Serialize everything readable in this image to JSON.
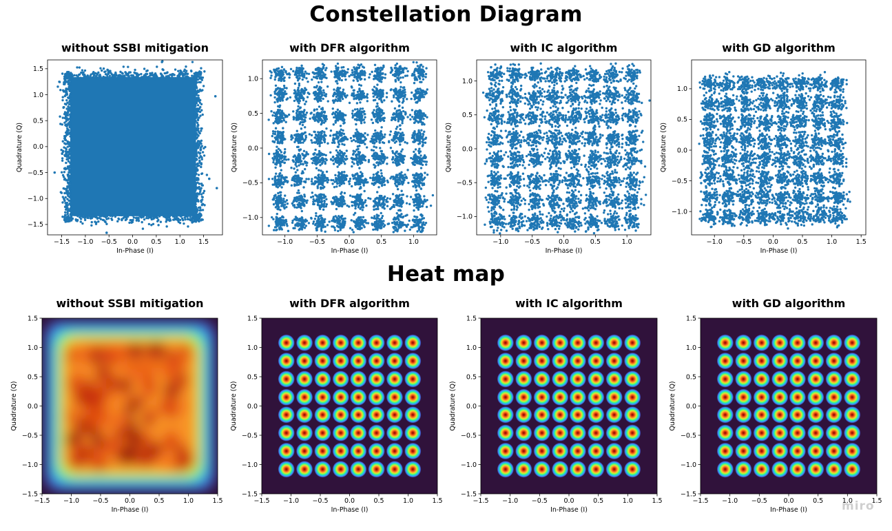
{
  "titles": {
    "constellation": "Constellation Diagram",
    "heat": "Heat map"
  },
  "watermark": "miro",
  "colors": {
    "scatter": "#1f77b4",
    "heat_background": "#30123b",
    "heat_colormap": "turbo"
  },
  "chart_data": [
    {
      "type": "scatter",
      "title": "without SSBI mitigation",
      "xlabel": "In-Phase (I)",
      "ylabel": "Quadrature (Q)",
      "xlim": [
        -1.8,
        1.9
      ],
      "ylim": [
        -1.7,
        1.67
      ],
      "xticks": [
        -1.5,
        -1.0,
        -0.5,
        0.0,
        0.5,
        1.0,
        1.5
      ],
      "xtick_labels": [
        "−1.5",
        "−1.0",
        "−0.5",
        "0.0",
        "0.5",
        "1.0",
        "1.5"
      ],
      "yticks": [
        -1.5,
        -1.0,
        -0.5,
        0.0,
        0.5,
        1.0,
        1.5
      ],
      "ytick_labels": [
        "−1.5",
        "−1.0",
        "−0.5",
        "0.0",
        "0.5",
        "1.0",
        "1.5"
      ],
      "distribution": "dense square cloud",
      "extent": [
        -1.5,
        1.5
      ],
      "grid": false
    },
    {
      "type": "scatter",
      "title": "with DFR algorithm",
      "xlabel": "In-Phase (I)",
      "ylabel": "Quadrature (Q)",
      "xlim": [
        -1.35,
        1.36
      ],
      "ylim": [
        -1.25,
        1.27
      ],
      "xticks": [
        -1.0,
        -0.5,
        0.0,
        0.5,
        1.0
      ],
      "xtick_labels": [
        "−1.0",
        "−0.5",
        "0.0",
        "0.5",
        "1.0"
      ],
      "yticks": [
        -1.0,
        -0.5,
        0.0,
        0.5,
        1.0
      ],
      "ytick_labels": [
        "−1.0",
        "−0.5",
        "0.0",
        "0.5",
        "1.0"
      ],
      "constellation": "64-QAM",
      "centers": [
        -1.08,
        -0.77,
        -0.46,
        -0.15,
        0.15,
        0.46,
        0.77,
        1.08
      ],
      "spread": 0.055,
      "grid": false
    },
    {
      "type": "scatter",
      "title": "with IC algorithm",
      "xlabel": "In-Phase (I)",
      "ylabel": "Quadrature (Q)",
      "xlim": [
        -1.38,
        1.38
      ],
      "ylim": [
        -1.27,
        1.31
      ],
      "xticks": [
        -1.0,
        -0.5,
        0.0,
        0.5,
        1.0
      ],
      "xtick_labels": [
        "−1.0",
        "−0.5",
        "0.0",
        "0.5",
        "1.0"
      ],
      "yticks": [
        -1.0,
        -0.5,
        0.0,
        0.5,
        1.0
      ],
      "ytick_labels": [
        "−1.0",
        "−0.5",
        "0.0",
        "0.5",
        "1.0"
      ],
      "constellation": "64-QAM",
      "centers": [
        -1.08,
        -0.77,
        -0.46,
        -0.15,
        0.15,
        0.46,
        0.77,
        1.08
      ],
      "spread": 0.065,
      "grid": false
    },
    {
      "type": "scatter",
      "title": "with GD algorithm",
      "xlabel": "In-Phase (I)",
      "ylabel": "Quadrature (Q)",
      "xlim": [
        -1.39,
        1.58
      ],
      "ylim": [
        -1.38,
        1.47
      ],
      "xticks": [
        -1.0,
        -0.5,
        0.0,
        0.5,
        1.0,
        1.5
      ],
      "xtick_labels": [
        "−1.0",
        "−0.5",
        "0.0",
        "0.5",
        "1.0",
        "1.5"
      ],
      "yticks": [
        -1.0,
        -0.5,
        0.0,
        0.5,
        1.0
      ],
      "ytick_labels": [
        "−1.0",
        "−0.5",
        "0.0",
        "0.5",
        "1.0"
      ],
      "constellation": "64-QAM",
      "centers": [
        -1.08,
        -0.77,
        -0.46,
        -0.15,
        0.15,
        0.46,
        0.77,
        1.08
      ],
      "spread": 0.07,
      "grid": false
    },
    {
      "type": "heatmap",
      "title": "without SSBI mitigation",
      "xlabel": "In-Phase (I)",
      "ylabel": "Quadrature (Q)",
      "xlim": [
        -1.5,
        1.5
      ],
      "ylim": [
        -1.5,
        1.5
      ],
      "xticks": [
        -1.5,
        -1.0,
        -0.5,
        0.0,
        0.5,
        1.0,
        1.5
      ],
      "xtick_labels": [
        "−1.5",
        "−1.0",
        "−0.5",
        "0.0",
        "0.5",
        "1.0",
        "1.5"
      ],
      "yticks": [
        -1.5,
        -1.0,
        -0.5,
        0.0,
        0.5,
        1.0,
        1.5
      ],
      "ytick_labels": [
        "−1.5",
        "−1.0",
        "−0.5",
        "0.0",
        "0.5",
        "1.0",
        "1.5"
      ],
      "distribution": "diffuse square",
      "extent": [
        -1.15,
        1.15
      ]
    },
    {
      "type": "heatmap",
      "title": "with DFR algorithm",
      "xlabel": "In-Phase (I)",
      "ylabel": "Quadrature (Q)",
      "xlim": [
        -1.5,
        1.5
      ],
      "ylim": [
        -1.5,
        1.5
      ],
      "xticks": [
        -1.5,
        -1.0,
        -0.5,
        0.0,
        0.5,
        1.0,
        1.5
      ],
      "xtick_labels": [
        "−1.5",
        "−1.0",
        "−0.5",
        "0.0",
        "0.5",
        "1.0",
        "1.5"
      ],
      "yticks": [
        -1.5,
        -1.0,
        -0.5,
        0.0,
        0.5,
        1.0,
        1.5
      ],
      "ytick_labels": [
        "−1.5",
        "−1.0",
        "−0.5",
        "0.0",
        "0.5",
        "1.0",
        "1.5"
      ],
      "constellation": "64-QAM",
      "centers": [
        -1.08,
        -0.77,
        -0.46,
        -0.15,
        0.15,
        0.46,
        0.77,
        1.08
      ]
    },
    {
      "type": "heatmap",
      "title": "with IC algorithm",
      "xlabel": "In-Phase (I)",
      "ylabel": "Quadrature (Q)",
      "xlim": [
        -1.5,
        1.5
      ],
      "ylim": [
        -1.5,
        1.5
      ],
      "xticks": [
        -1.5,
        -1.0,
        -0.5,
        0.0,
        0.5,
        1.0,
        1.5
      ],
      "xtick_labels": [
        "−1.5",
        "−1.0",
        "−0.5",
        "0.0",
        "0.5",
        "1.0",
        "1.5"
      ],
      "yticks": [
        -1.5,
        -1.0,
        -0.5,
        0.0,
        0.5,
        1.0,
        1.5
      ],
      "ytick_labels": [
        "−1.5",
        "−1.0",
        "−0.5",
        "0.0",
        "0.5",
        "1.0",
        "1.5"
      ],
      "constellation": "64-QAM",
      "centers": [
        -1.08,
        -0.77,
        -0.46,
        -0.15,
        0.15,
        0.46,
        0.77,
        1.08
      ]
    },
    {
      "type": "heatmap",
      "title": "with GD algorithm",
      "xlabel": "In-Phase (I)",
      "ylabel": "Quadrature (Q)",
      "xlim": [
        -1.5,
        1.5
      ],
      "ylim": [
        -1.5,
        1.5
      ],
      "xticks": [
        -1.5,
        -1.0,
        -0.5,
        0.0,
        0.5,
        1.0,
        1.5
      ],
      "xtick_labels": [
        "−1.5",
        "−1.0",
        "−0.5",
        "0.0",
        "0.5",
        "1.0",
        "1.5"
      ],
      "yticks": [
        -1.5,
        -1.0,
        -0.5,
        0.0,
        0.5,
        1.0,
        1.5
      ],
      "ytick_labels": [
        "−1.5",
        "−1.0",
        "−0.5",
        "0.0",
        "0.5",
        "1.0",
        "1.5"
      ],
      "constellation": "64-QAM",
      "centers": [
        -1.08,
        -0.77,
        -0.46,
        -0.15,
        0.15,
        0.46,
        0.77,
        1.08
      ]
    }
  ]
}
